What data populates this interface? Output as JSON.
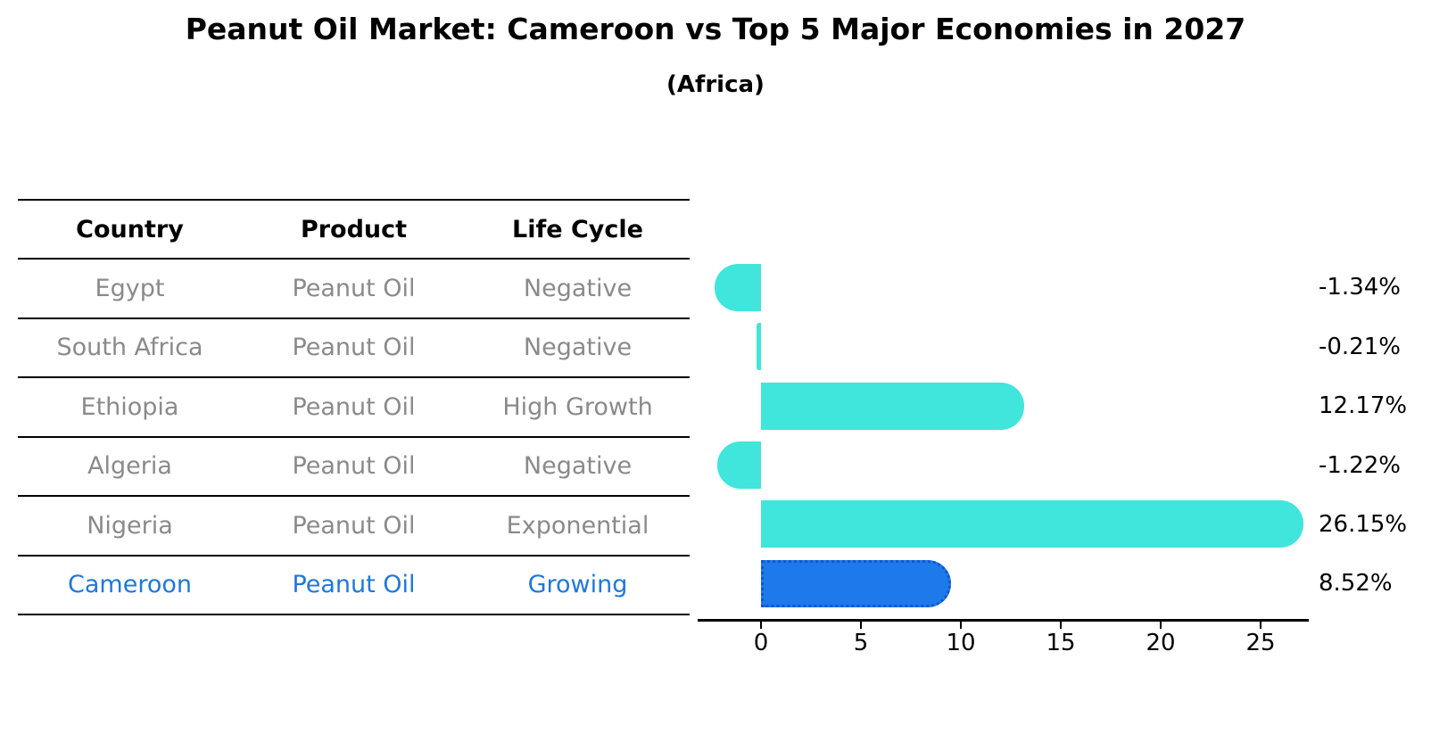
{
  "title": "Peanut Oil Market: Cameroon vs Top 5 Major Economies in 2027",
  "subtitle": "(Africa)",
  "colors": {
    "bar_cyan": "#40E5DC",
    "bar_blue": "#1E79EA",
    "bar_blue_border": "#1157CB",
    "highlight_text": "#1E78DC",
    "row_text": "#8A8A8A",
    "line_black": "#000000"
  },
  "table": {
    "headers": [
      "Country",
      "Product",
      "Life Cycle"
    ],
    "rows": [
      {
        "country": "Egypt",
        "product": "Peanut Oil",
        "life_cycle": "Negative",
        "highlight": false
      },
      {
        "country": "South Africa",
        "product": "Peanut Oil",
        "life_cycle": "Negative",
        "highlight": false
      },
      {
        "country": "Ethiopia",
        "product": "Peanut Oil",
        "life_cycle": "High Growth",
        "highlight": false
      },
      {
        "country": "Algeria",
        "product": "Peanut Oil",
        "life_cycle": "Negative",
        "highlight": false
      },
      {
        "country": "Nigeria",
        "product": "Peanut Oil",
        "life_cycle": "Exponential",
        "highlight": false
      },
      {
        "country": "Cameroon",
        "product": "Peanut Oil",
        "life_cycle": "Growing",
        "highlight": true
      }
    ]
  },
  "chart_data": {
    "type": "bar",
    "orientation": "horizontal",
    "title": "Peanut Oil Market: Cameroon vs Top 5 Major Economies in 2027",
    "subtitle": "(Africa)",
    "categories": [
      "Egypt",
      "South Africa",
      "Ethiopia",
      "Algeria",
      "Nigeria",
      "Cameroon"
    ],
    "values": [
      -1.34,
      -0.21,
      12.17,
      -1.22,
      26.15,
      8.52
    ],
    "value_labels": [
      "-1.34%",
      "-0.21%",
      "12.17%",
      "-1.22%",
      "26.15%",
      "8.52%"
    ],
    "unit": "percent",
    "xticks": [
      0,
      5,
      10,
      15,
      20,
      25
    ],
    "xlim": [
      -3.2,
      27.4
    ],
    "highlight_index": 5,
    "grid": false,
    "legend": false
  }
}
